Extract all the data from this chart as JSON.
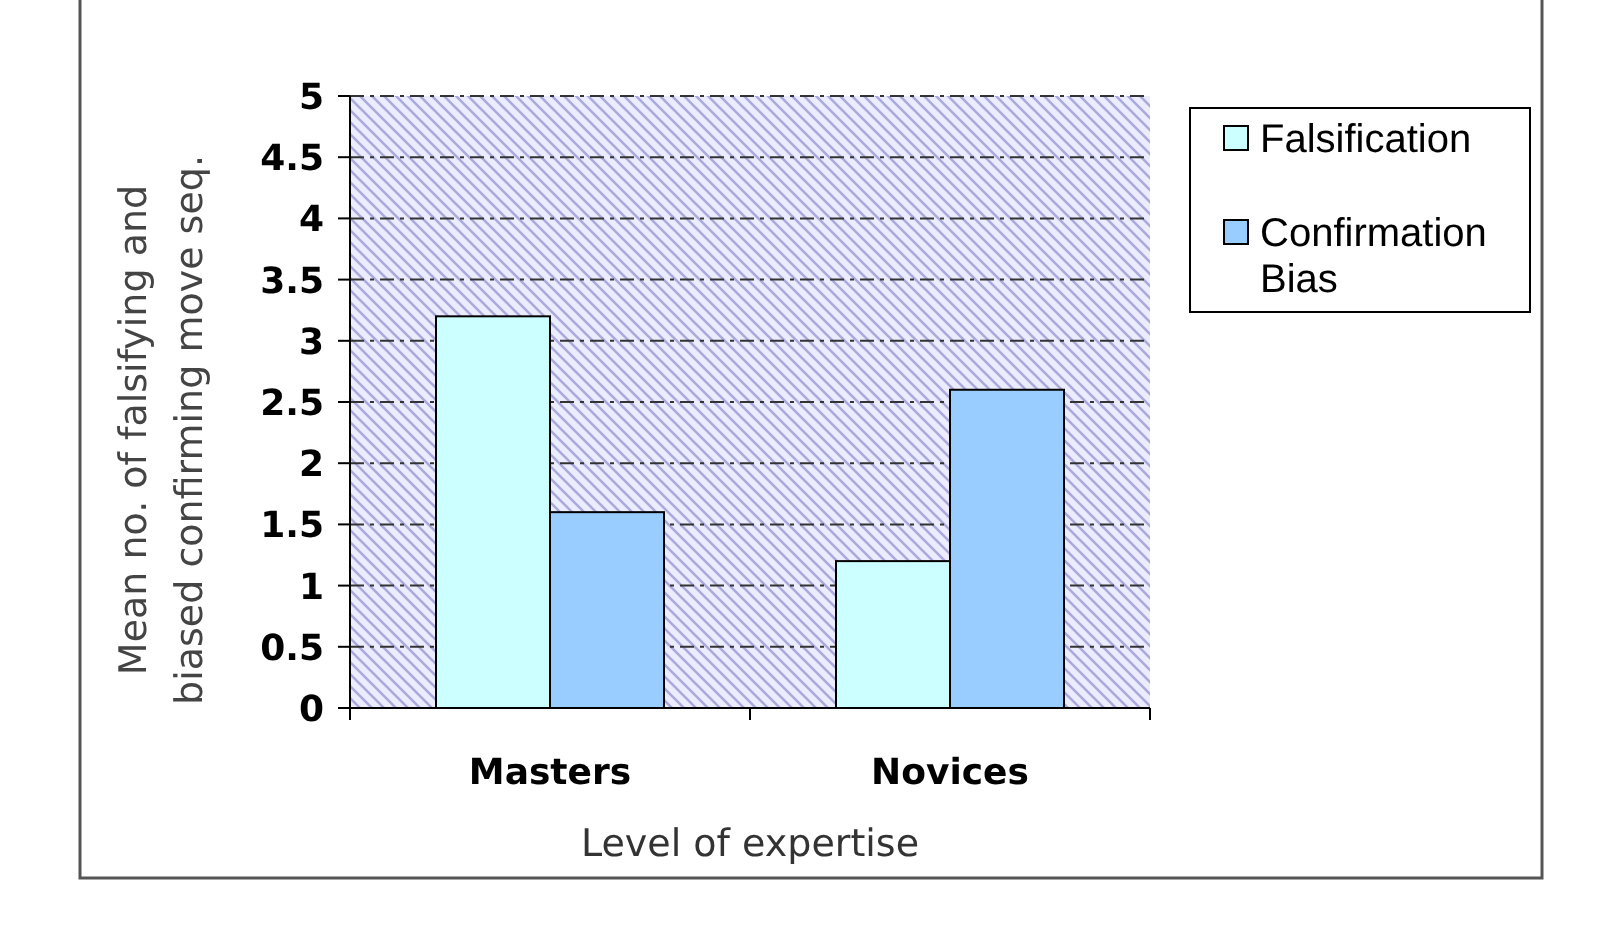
{
  "chart_data": {
    "type": "bar",
    "categories": [
      "Masters",
      "Novices"
    ],
    "series": [
      {
        "name": "Falsification",
        "color": "#ccffff",
        "values": [
          3.2,
          1.2
        ]
      },
      {
        "name": "Confirmation Bias",
        "color": "#99ccff",
        "values": [
          1.6,
          2.6
        ]
      }
    ],
    "xlabel": "Level of expertise",
    "ylabel": "Mean no. of falsifying and biased confirming move seq.",
    "ylim": [
      0,
      5
    ],
    "yticks": [
      0,
      0.5,
      1,
      1.5,
      2,
      2.5,
      3,
      3.5,
      4,
      4.5,
      5
    ],
    "grid": "y",
    "legend": "right"
  }
}
